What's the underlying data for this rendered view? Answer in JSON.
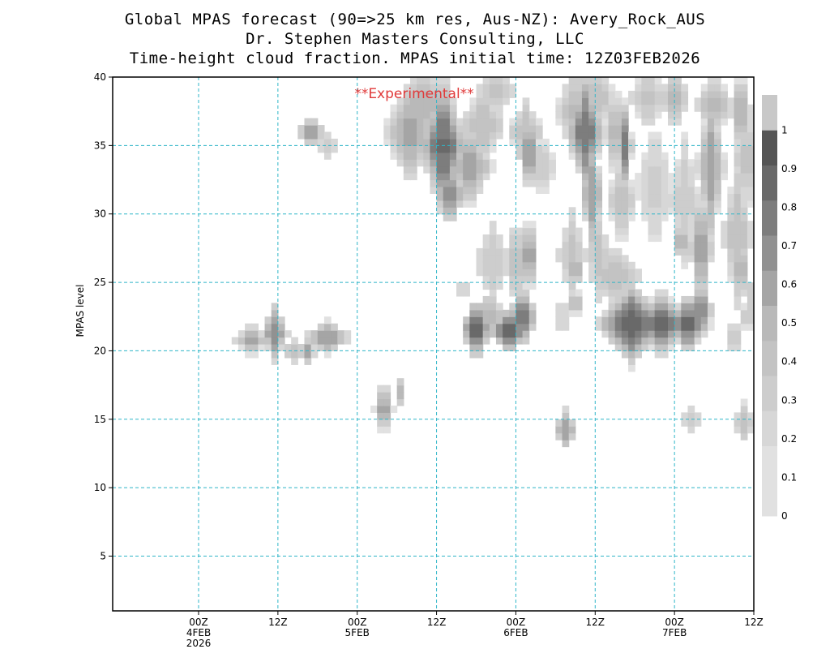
{
  "header": {
    "title_line1": "Global MPAS forecast (90=>25 km res, Aus-NZ): Avery_Rock_AUS",
    "title_line2": "Dr. Stephen Masters Consulting, LLC",
    "title_line3": "Time-height cloud fraction.   MPAS initial time: 12Z03FEB2026"
  },
  "chart_data": {
    "type": "heatmap",
    "title": "Time-height cloud fraction.",
    "annotation": "**Experimental**",
    "ylabel": "MPAS level",
    "ylim": [
      1,
      40
    ],
    "yticks": [
      5,
      10,
      15,
      20,
      25,
      30,
      35,
      40
    ],
    "x_units": "hours after 12Z03FEB2026",
    "xlim": [
      -1,
      96
    ],
    "xticks": [
      {
        "hour": 12,
        "label": [
          "00Z",
          "4FEB",
          "2026"
        ]
      },
      {
        "hour": 24,
        "label": [
          "12Z"
        ]
      },
      {
        "hour": 36,
        "label": [
          "00Z",
          "5FEB"
        ]
      },
      {
        "hour": 48,
        "label": [
          "12Z"
        ]
      },
      {
        "hour": 60,
        "label": [
          "00Z",
          "6FEB"
        ]
      },
      {
        "hour": 72,
        "label": [
          "12Z"
        ]
      },
      {
        "hour": 84,
        "label": [
          "00Z",
          "7FEB"
        ]
      },
      {
        "hour": 96,
        "label": [
          "12Z"
        ]
      }
    ],
    "grid": true,
    "legend": {
      "position": "right",
      "labels": [
        "0",
        "0.1",
        "0.2",
        "0.3",
        "0.4",
        "0.5",
        "0.6",
        "0.7",
        "0.8",
        "0.9",
        "1"
      ],
      "colors": [
        "#ffffff",
        "#e1e1e1",
        "#d7d7d7",
        "#cdcdcd",
        "#c3c3c3",
        "#b9b9b9",
        "#a5a5a5",
        "#919191",
        "#7d7d7d",
        "#696969",
        "#555555",
        "#c8c8c8"
      ]
    },
    "blobs": [
      {
        "x": 20,
        "y": 20.8,
        "rx": 2.2,
        "ry": 1.0,
        "v": 0.55
      },
      {
        "x": 23.5,
        "y": 21.3,
        "rx": 1.8,
        "ry": 1.8,
        "v": 0.65
      },
      {
        "x": 26.5,
        "y": 20.0,
        "rx": 2.0,
        "ry": 0.7,
        "v": 0.35
      },
      {
        "x": 28.5,
        "y": 20.0,
        "rx": 1.2,
        "ry": 0.7,
        "v": 0.6
      },
      {
        "x": 31.5,
        "y": 21.0,
        "rx": 3.5,
        "ry": 1.0,
        "v": 0.6
      },
      {
        "x": 29,
        "y": 36.0,
        "rx": 2.0,
        "ry": 1.0,
        "v": 0.6
      },
      {
        "x": 31.5,
        "y": 35.0,
        "rx": 1.5,
        "ry": 0.8,
        "v": 0.25
      },
      {
        "x": 40,
        "y": 15.8,
        "rx": 1.2,
        "ry": 1.8,
        "v": 0.6
      },
      {
        "x": 42.5,
        "y": 17.0,
        "rx": 0.8,
        "ry": 0.9,
        "v": 0.45
      },
      {
        "x": 44,
        "y": 36.0,
        "rx": 3.5,
        "ry": 3.2,
        "v": 0.55
      },
      {
        "x": 46,
        "y": 38.0,
        "rx": 3.0,
        "ry": 2.5,
        "v": 0.5
      },
      {
        "x": 49,
        "y": 35.0,
        "rx": 3.0,
        "ry": 4.5,
        "v": 0.85
      },
      {
        "x": 50,
        "y": 31.5,
        "rx": 2.0,
        "ry": 2.0,
        "v": 0.7
      },
      {
        "x": 53,
        "y": 33.5,
        "rx": 3.0,
        "ry": 2.5,
        "v": 0.6
      },
      {
        "x": 55,
        "y": 36.5,
        "rx": 3.0,
        "ry": 2.5,
        "v": 0.4
      },
      {
        "x": 57,
        "y": 39.0,
        "rx": 3.0,
        "ry": 1.5,
        "v": 0.35
      },
      {
        "x": 54,
        "y": 21.6,
        "rx": 2.0,
        "ry": 2.0,
        "v": 0.9
      },
      {
        "x": 56,
        "y": 22.5,
        "rx": 2.5,
        "ry": 1.5,
        "v": 0.5
      },
      {
        "x": 59,
        "y": 21.5,
        "rx": 3.0,
        "ry": 1.4,
        "v": 0.9
      },
      {
        "x": 61,
        "y": 22.5,
        "rx": 2.0,
        "ry": 2.0,
        "v": 0.85
      },
      {
        "x": 56.5,
        "y": 26.5,
        "rx": 2.5,
        "ry": 2.5,
        "v": 0.3
      },
      {
        "x": 60,
        "y": 26.5,
        "rx": 1.0,
        "ry": 3.5,
        "v": 0.45
      },
      {
        "x": 62,
        "y": 27.0,
        "rx": 1.0,
        "ry": 3.0,
        "v": 0.65
      },
      {
        "x": 62,
        "y": 34.5,
        "rx": 1.5,
        "ry": 2.5,
        "v": 0.65
      },
      {
        "x": 61.5,
        "y": 36.0,
        "rx": 2.5,
        "ry": 2.0,
        "v": 0.4
      },
      {
        "x": 64,
        "y": 33.5,
        "rx": 2.0,
        "ry": 2.0,
        "v": 0.3
      },
      {
        "x": 52,
        "y": 24.5,
        "rx": 0.7,
        "ry": 0.9,
        "v": 0.35
      },
      {
        "x": 67,
        "y": 22.5,
        "rx": 1.0,
        "ry": 1.5,
        "v": 0.25
      },
      {
        "x": 67.5,
        "y": 14.3,
        "rx": 1.6,
        "ry": 1.2,
        "v": 0.6
      },
      {
        "x": 68.5,
        "y": 27.0,
        "rx": 2.0,
        "ry": 3.0,
        "v": 0.35
      },
      {
        "x": 69,
        "y": 26.0,
        "rx": 1.0,
        "ry": 1.5,
        "v": 0.6
      },
      {
        "x": 69,
        "y": 23.5,
        "rx": 1.0,
        "ry": 1.0,
        "v": 0.45
      },
      {
        "x": 69,
        "y": 37.5,
        "rx": 2.5,
        "ry": 3.0,
        "v": 0.45
      },
      {
        "x": 70.5,
        "y": 36.0,
        "rx": 2.5,
        "ry": 3.5,
        "v": 0.8
      },
      {
        "x": 71.5,
        "y": 31.5,
        "rx": 1.5,
        "ry": 3.5,
        "v": 0.6
      },
      {
        "x": 72.5,
        "y": 27.0,
        "rx": 1.5,
        "ry": 3.0,
        "v": 0.35
      },
      {
        "x": 72,
        "y": 38.5,
        "rx": 3.0,
        "ry": 2.0,
        "v": 0.4
      },
      {
        "x": 75,
        "y": 36.0,
        "rx": 1.5,
        "ry": 3.0,
        "v": 0.45
      },
      {
        "x": 76.5,
        "y": 35.0,
        "rx": 1.0,
        "ry": 2.5,
        "v": 0.75
      },
      {
        "x": 76,
        "y": 31.0,
        "rx": 2.0,
        "ry": 3.0,
        "v": 0.35
      },
      {
        "x": 75,
        "y": 25.5,
        "rx": 4.0,
        "ry": 2.0,
        "v": 0.35
      },
      {
        "x": 77.5,
        "y": 22.0,
        "rx": 4.5,
        "ry": 2.5,
        "v": 0.88
      },
      {
        "x": 82,
        "y": 22.0,
        "rx": 3.5,
        "ry": 2.0,
        "v": 0.88
      },
      {
        "x": 86,
        "y": 22.0,
        "rx": 3.0,
        "ry": 1.8,
        "v": 0.85
      },
      {
        "x": 88,
        "y": 23.0,
        "rx": 1.5,
        "ry": 2.0,
        "v": 0.7
      },
      {
        "x": 88,
        "y": 27.5,
        "rx": 1.5,
        "ry": 3.5,
        "v": 0.65
      },
      {
        "x": 89.5,
        "y": 33.5,
        "rx": 1.8,
        "ry": 4.5,
        "v": 0.6
      },
      {
        "x": 90,
        "y": 38.0,
        "rx": 2.5,
        "ry": 2.0,
        "v": 0.45
      },
      {
        "x": 84,
        "y": 38.5,
        "rx": 2.0,
        "ry": 2.0,
        "v": 0.5
      },
      {
        "x": 85,
        "y": 28.0,
        "rx": 1.0,
        "ry": 1.5,
        "v": 0.6
      },
      {
        "x": 85.5,
        "y": 31.0,
        "rx": 2.0,
        "ry": 4.0,
        "v": 0.3
      },
      {
        "x": 81,
        "y": 32.0,
        "rx": 2.5,
        "ry": 4.0,
        "v": 0.25
      },
      {
        "x": 80,
        "y": 38.5,
        "rx": 2.5,
        "ry": 2.0,
        "v": 0.35
      },
      {
        "x": 86.5,
        "y": 15.0,
        "rx": 1.5,
        "ry": 1.0,
        "v": 0.25
      },
      {
        "x": 94.5,
        "y": 14.8,
        "rx": 1.5,
        "ry": 1.2,
        "v": 0.4
      },
      {
        "x": 93,
        "y": 21.0,
        "rx": 1.0,
        "ry": 1.5,
        "v": 0.3
      },
      {
        "x": 93.5,
        "y": 28.5,
        "rx": 2.0,
        "ry": 4.5,
        "v": 0.4
      },
      {
        "x": 94,
        "y": 26.0,
        "rx": 1.0,
        "ry": 2.5,
        "v": 0.6
      },
      {
        "x": 95,
        "y": 34.0,
        "rx": 2.0,
        "ry": 3.5,
        "v": 0.35
      },
      {
        "x": 94,
        "y": 37.5,
        "rx": 1.5,
        "ry": 2.5,
        "v": 0.55
      },
      {
        "x": 95.5,
        "y": 24.0,
        "rx": 1.0,
        "ry": 1.0,
        "v": 0.3
      },
      {
        "x": 95,
        "y": 22.5,
        "rx": 1.5,
        "ry": 1.0,
        "v": 0.25
      }
    ]
  }
}
